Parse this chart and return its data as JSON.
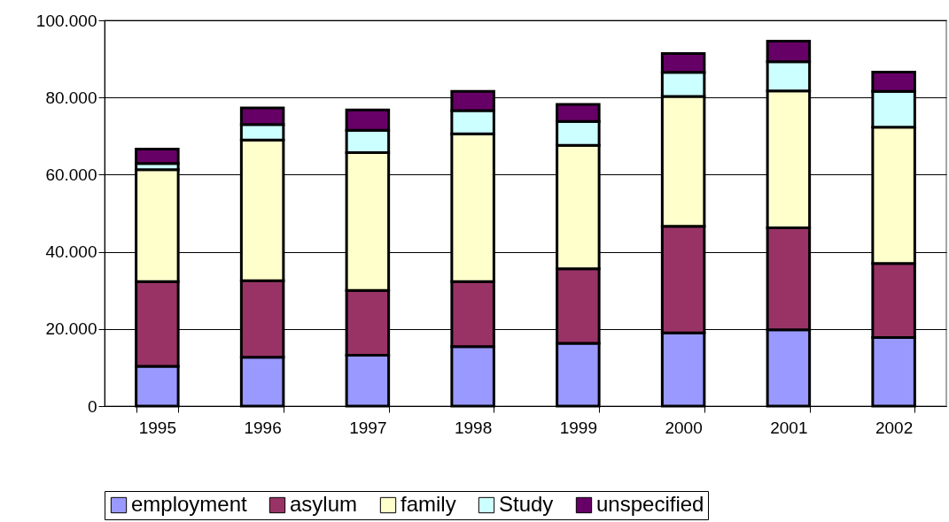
{
  "chart_data": {
    "type": "bar",
    "stacked": true,
    "categories": [
      "1995",
      "1996",
      "1997",
      "1998",
      "1999",
      "2000",
      "2001",
      "2002"
    ],
    "series": [
      {
        "name": "employment",
        "color": "#9999ff",
        "values": [
          10300,
          12700,
          13200,
          15400,
          16300,
          19000,
          19800,
          17800
        ]
      },
      {
        "name": "asylum",
        "color": "#993366",
        "values": [
          22000,
          19800,
          16800,
          16900,
          19300,
          27600,
          26400,
          19200
        ]
      },
      {
        "name": "family",
        "color": "#ffffcc",
        "values": [
          29000,
          36500,
          35700,
          38300,
          32000,
          33700,
          35500,
          35300
        ]
      },
      {
        "name": "Study",
        "color": "#ccffff",
        "values": [
          1600,
          4000,
          5800,
          6000,
          6200,
          6200,
          7600,
          9300
        ]
      },
      {
        "name": "unspecified",
        "color": "#660066",
        "values": [
          3700,
          4300,
          5300,
          5000,
          4400,
          4900,
          5300,
          5000
        ]
      }
    ],
    "ylim": [
      0,
      100000
    ],
    "yticks": [
      {
        "value": 0,
        "label": "0"
      },
      {
        "value": 20000,
        "label": "20.000"
      },
      {
        "value": 40000,
        "label": "40.000"
      },
      {
        "value": 60000,
        "label": "60.000"
      },
      {
        "value": 80000,
        "label": "80.000"
      },
      {
        "value": 100000,
        "label": "100.000"
      }
    ],
    "grid": "y",
    "legend": "bottom"
  }
}
